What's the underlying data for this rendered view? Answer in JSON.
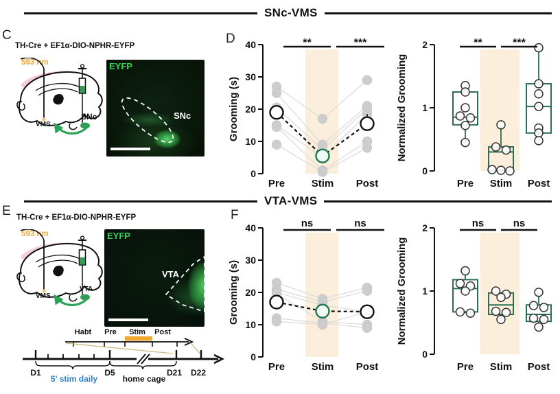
{
  "figure": {
    "headers": [
      {
        "title": "SNc-VMS"
      },
      {
        "title": "VTA-VMS"
      }
    ],
    "panels": {
      "C": {
        "label": "C",
        "title": "TH-Cre + EF1α-DIO-NPHR-EYFP",
        "wavelength_label": "593 nm",
        "target_label": "SNc",
        "projection_label": "VMS",
        "micrograph": {
          "stain_label": "EYFP",
          "region_label": "SNc"
        }
      },
      "D": {
        "label": "D"
      },
      "E": {
        "label": "E",
        "title": "TH-Cre + EF1α-DIO-NPHR-EYFP",
        "wavelength_label": "593 nm",
        "target_label": "VTA",
        "projection_label": "VMS",
        "micrograph": {
          "stain_label": "EYFP",
          "region_label": "VTA"
        },
        "timeline": {
          "phases": [
            "Habt",
            "Pre",
            "Stim",
            "Post"
          ],
          "day_labels": [
            "D1",
            "D5",
            "D21",
            "D22"
          ],
          "stim_caption": "5' stim daily",
          "homecage_caption": "home cage"
        }
      },
      "F": {
        "label": "F"
      }
    },
    "colors": {
      "stim_band": "#fbeedb",
      "stim_bar_orange": "#f0a830",
      "accent_orange": "#e9a93e",
      "green": "#1e7a4c",
      "box_green": "#2a6e55",
      "blue": "#2f7fd0",
      "gray_point": "#cdcdcd",
      "gray_line": "#dcdcdc"
    }
  },
  "chart_data": [
    {
      "id": "snc-grooming",
      "type": "scatter",
      "ylabel": "Grooming (s)",
      "ylim": [
        0,
        40
      ],
      "yticks": [
        0,
        10,
        20,
        30,
        40
      ],
      "categories": [
        "Pre",
        "Stim",
        "Post"
      ],
      "stim_band_category": "Stim",
      "significance": [
        {
          "between": [
            "Pre",
            "Stim"
          ],
          "label": "**"
        },
        {
          "between": [
            "Stim",
            "Post"
          ],
          "label": "***"
        }
      ],
      "subjects": [
        [
          27,
          17,
          29
        ],
        [
          25,
          9,
          21
        ],
        [
          20.5,
          7.5,
          20
        ],
        [
          15,
          5,
          18.5
        ],
        [
          14.5,
          1,
          10
        ],
        [
          9,
          0.5,
          8
        ]
      ],
      "mean": [
        19,
        5.5,
        15.5
      ],
      "mean_err": [
        [
          17,
          21
        ],
        [
          3.5,
          7.5
        ],
        [
          13.5,
          18.5
        ]
      ]
    },
    {
      "id": "snc-normalized",
      "type": "box",
      "ylabel": "Normalized Grooming",
      "ylim": [
        0,
        2
      ],
      "yticks": [
        0,
        1,
        2
      ],
      "categories": [
        "Pre",
        "Stim",
        "Post"
      ],
      "stim_band_category": "Stim",
      "significance": [
        {
          "between": [
            "Pre",
            "Stim"
          ],
          "label": "**"
        },
        {
          "between": [
            "Stim",
            "Post"
          ],
          "label": "***"
        }
      ],
      "boxes": [
        {
          "category": "Pre",
          "q1": 0.73,
          "median": 0.85,
          "q3": 1.25,
          "whisker_low": 0.45,
          "whisker_high": 1.35,
          "points": [
            1.35,
            1.25,
            1.0,
            0.87,
            0.84,
            0.72,
            0.45
          ]
        },
        {
          "category": "Stim",
          "q1": 0.0,
          "median": 0.3,
          "q3": 0.38,
          "whisker_low": 0.0,
          "whisker_high": 0.73,
          "points": [
            0.73,
            0.38,
            0.33,
            0.02,
            0.01,
            0.0
          ]
        },
        {
          "category": "Post",
          "q1": 0.6,
          "median": 1.02,
          "q3": 1.38,
          "whisker_low": 0.48,
          "whisker_high": 1.95,
          "points": [
            1.95,
            1.38,
            1.22,
            1.02,
            0.68,
            0.6,
            0.48
          ]
        }
      ]
    },
    {
      "id": "vta-grooming",
      "type": "scatter",
      "ylabel": "Grooming (s)",
      "ylim": [
        0,
        40
      ],
      "yticks": [
        0,
        10,
        20,
        30,
        40
      ],
      "categories": [
        "Pre",
        "Stim",
        "Post"
      ],
      "stim_band_category": "Stim",
      "significance": [
        {
          "between": [
            "Pre",
            "Stim"
          ],
          "label": "ns"
        },
        {
          "between": [
            "Stim",
            "Post"
          ],
          "label": "ns"
        }
      ],
      "subjects": [
        [
          23,
          18,
          21.5
        ],
        [
          21,
          17,
          20.5
        ],
        [
          20,
          16,
          14
        ],
        [
          19.5,
          11,
          10
        ],
        [
          12,
          10.5,
          9
        ],
        [
          11,
          10,
          14
        ]
      ],
      "mean": [
        17,
        14.2,
        14
      ],
      "mean_err": [
        [
          15.5,
          18.5
        ],
        [
          13,
          15.5
        ],
        [
          12.5,
          15.5
        ]
      ]
    },
    {
      "id": "vta-normalized",
      "type": "box",
      "ylabel": "Normalized Grooming",
      "ylim": [
        0,
        2
      ],
      "yticks": [
        0,
        1,
        2
      ],
      "categories": [
        "Pre",
        "Stim",
        "Post"
      ],
      "stim_band_category": "Stim",
      "significance": [
        {
          "between": [
            "Pre",
            "Stim"
          ],
          "label": "ns"
        },
        {
          "between": [
            "Stim",
            "Post"
          ],
          "label": "ns"
        }
      ],
      "boxes": [
        {
          "category": "Pre",
          "q1": 0.67,
          "median": 1.04,
          "q3": 1.18,
          "whisker_low": 0.65,
          "whisker_high": 1.32,
          "points": [
            1.32,
            1.12,
            1.08,
            1.0,
            0.67,
            0.65
          ]
        },
        {
          "category": "Stim",
          "q1": 0.63,
          "median": 0.78,
          "q3": 0.97,
          "whisker_low": 0.55,
          "whisker_high": 0.97,
          "points": [
            1.0,
            0.95,
            0.9,
            0.68,
            0.66,
            0.55
          ]
        },
        {
          "category": "Post",
          "q1": 0.52,
          "median": 0.63,
          "q3": 0.78,
          "whisker_low": 0.43,
          "whisker_high": 0.98,
          "points": [
            0.98,
            0.77,
            0.74,
            0.57,
            0.55,
            0.43
          ]
        }
      ]
    }
  ]
}
